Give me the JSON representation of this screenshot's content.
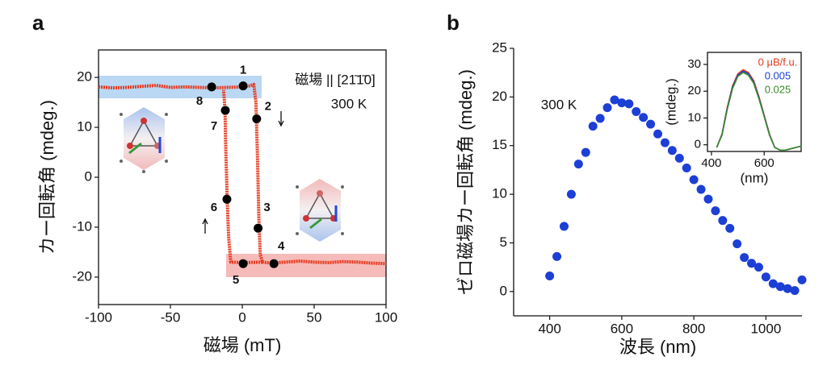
{
  "chart_data": [
    {
      "type": "line",
      "panel_label": "a",
      "xlabel": "磁場 (mT)",
      "ylabel": "カー回転角 (mdeg.)",
      "xlim": [
        -100,
        100
      ],
      "xticks": [
        -100,
        -50,
        0,
        50,
        100
      ],
      "ylim": [
        -25.5,
        25.5
      ],
      "yticks": [
        -20,
        -10,
        0,
        10,
        20
      ],
      "annotations": [
        "磁場 || [21̄1̄0]",
        "300 K"
      ],
      "series": [
        {
          "color": "#e8391d",
          "x": [
            -100,
            -90,
            -80,
            -70,
            -60,
            -50,
            -40,
            -30,
            -20,
            -10,
            0,
            5,
            8,
            9.5,
            10.5,
            11.5,
            12.5,
            14,
            20,
            30,
            40,
            50,
            60,
            70,
            80,
            90,
            100
          ],
          "values": [
            18.1,
            17.9,
            18,
            18.2,
            18.4,
            18,
            18.1,
            18,
            17.9,
            18,
            18.1,
            18.3,
            18.6,
            15,
            5,
            -8,
            -15.5,
            -17,
            -17.2,
            -17,
            -16.8,
            -17,
            -17.1,
            -16.9,
            -17,
            -17.2,
            -17.3
          ]
        },
        {
          "color": "#e8391d",
          "x": [
            14,
            0,
            -8,
            -9.5,
            -10.5,
            -11.5,
            -12,
            -13
          ],
          "values": [
            -17,
            -17.1,
            -17,
            -12,
            -4.4,
            6,
            13.4,
            17.5
          ]
        }
      ],
      "markers": {
        "color": "#000000",
        "labels": [
          "1",
          "2",
          "3",
          "4",
          "5",
          "6",
          "7",
          "8"
        ],
        "x": [
          0.6,
          10,
          11,
          22,
          0.6,
          -10.7,
          -11.8,
          -21.3
        ],
        "values": [
          18.3,
          11.7,
          -10.2,
          -17.3,
          -17.3,
          -4.4,
          13.4,
          18.1
        ]
      }
    },
    {
      "type": "scatter",
      "panel_label": "b",
      "xlabel": "波長 (nm)",
      "ylabel": "ゼロ磁場カー回転角 (mdeg.)",
      "xlim": [
        300,
        1100
      ],
      "xticks": [
        400,
        600,
        800,
        1000
      ],
      "ylim": [
        -2.5,
        25
      ],
      "yticks": [
        0,
        5,
        10,
        15,
        20,
        25
      ],
      "annotations": [
        "300 K"
      ],
      "color": "#1c3fd6",
      "x": [
        400,
        420,
        440,
        460,
        480,
        500,
        520,
        540,
        560,
        580,
        600,
        620,
        640,
        660,
        680,
        700,
        720,
        740,
        760,
        780,
        800,
        820,
        840,
        860,
        880,
        900,
        920,
        940,
        960,
        980,
        1000,
        1020,
        1040,
        1060,
        1080,
        1100
      ],
      "values": [
        1.6,
        3.6,
        6.7,
        10,
        13.1,
        14.3,
        17,
        17.8,
        18.9,
        19.7,
        19.4,
        19.3,
        18.5,
        17.9,
        17.2,
        16.2,
        15.3,
        14.5,
        13.7,
        12.7,
        11.5,
        10.5,
        9.5,
        8.3,
        7.3,
        6.5,
        4.9,
        3.5,
        2.9,
        2.5,
        1.5,
        0.8,
        0.5,
        0.3,
        0.1,
        1.2
      ]
    },
    {
      "type": "line",
      "xlabel": "(nm)",
      "ylabel": "(mdeg.)",
      "xlim": [
        385,
        740
      ],
      "xticks": [
        400,
        600
      ],
      "ylim": [
        -2.5,
        34.5
      ],
      "yticks": [
        0,
        10,
        20,
        30
      ],
      "series": [
        {
          "name": "0 μB/f.u.",
          "color": "#e8391d",
          "x": [
            420,
            440,
            460,
            480,
            500,
            520,
            540,
            560,
            580,
            600,
            620,
            640,
            660,
            680,
            700,
            720,
            740
          ],
          "values": [
            -1,
            4,
            14,
            22,
            26.5,
            28,
            27,
            24,
            18,
            11,
            4,
            -1,
            -2,
            -2,
            -1.5,
            -1,
            -0.5
          ]
        },
        {
          "name": "0.005",
          "color": "#1c3fd6",
          "x": [
            420,
            440,
            460,
            480,
            500,
            520,
            540,
            560,
            580,
            600,
            620,
            640,
            660,
            680,
            700,
            720,
            740
          ],
          "values": [
            -1,
            3.8,
            13.6,
            21.5,
            26,
            27.5,
            26.5,
            23.5,
            17.6,
            10.8,
            3.8,
            -1,
            -2,
            -2,
            -1.5,
            -1,
            -0.5
          ]
        },
        {
          "name": "0.025",
          "color": "#3a8a2a",
          "x": [
            420,
            440,
            460,
            480,
            500,
            520,
            540,
            560,
            580,
            600,
            620,
            640,
            660,
            680,
            700,
            720,
            740
          ],
          "values": [
            -1,
            3.6,
            13.2,
            21,
            25.5,
            27,
            26,
            23,
            17.2,
            10.5,
            3.6,
            -1,
            -2,
            -2,
            -1.5,
            -1,
            -0.5
          ]
        }
      ]
    }
  ]
}
